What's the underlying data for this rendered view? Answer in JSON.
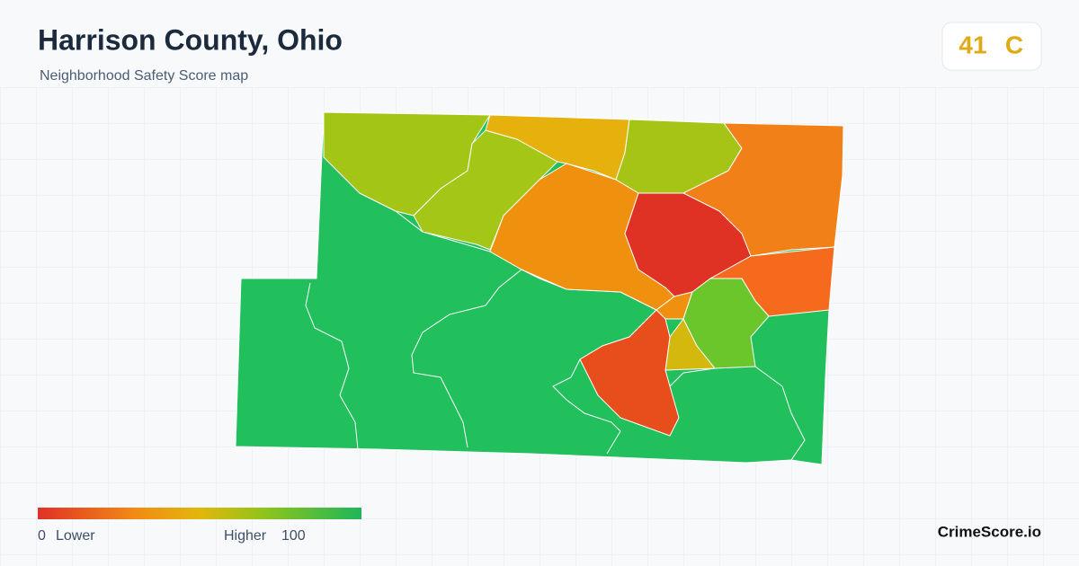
{
  "header": {
    "title": "Harrison County, Ohio",
    "subtitle": "Neighborhood Safety Score map"
  },
  "score": {
    "value": 41,
    "grade": "C"
  },
  "legend": {
    "min": 0,
    "min_label": "Lower",
    "max_label": "Higher",
    "max": 100
  },
  "brand": "CrimeScore.io"
}
